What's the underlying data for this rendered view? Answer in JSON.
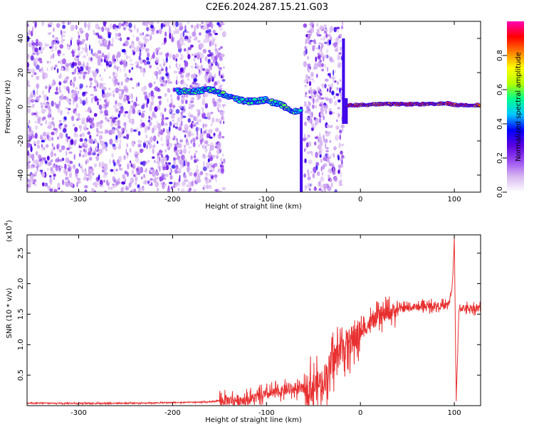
{
  "title": "C2E6.2024.287.15.21.G03",
  "chart_data": [
    {
      "type": "heatmap",
      "xlabel": "Height of straight line (km)",
      "ylabel": "Frequency (Hz)",
      "xlim": [
        -355,
        128
      ],
      "ylim": [
        -50,
        50
      ],
      "x_ticks": [
        -300,
        -200,
        -100,
        0,
        100
      ],
      "y_ticks": [
        -40,
        -20,
        0,
        20,
        40
      ],
      "colorbar": {
        "label": "Normalized spectral amplitude",
        "range": [
          0.0,
          1.0
        ],
        "ticks": [
          0.0,
          0.2,
          0.4,
          0.6,
          0.8
        ],
        "tick_labels": [
          "0.0",
          "0.2",
          "0.4",
          "0.6",
          "0.8"
        ],
        "colormap": [
          "#ffffff",
          "#d8b8f0",
          "#9a4df0",
          "#5a00e0",
          "#0000ff",
          "#00c8ff",
          "#00ff90",
          "#b4ff00",
          "#ffff00",
          "#ff8000",
          "#ff0000",
          "#ff00b4"
        ]
      },
      "noise_regions": [
        {
          "x_range": [
            -355,
            -145
          ],
          "density": "high"
        },
        {
          "x_range": [
            -60,
            -18
          ],
          "density": "high"
        }
      ],
      "signal_trace": {
        "x": [
          -195,
          -180,
          -160,
          -145,
          -130,
          -115,
          -100,
          -90,
          -80,
          -70,
          -63
        ],
        "y": [
          9,
          9,
          10,
          7,
          4,
          3,
          4,
          2,
          0,
          -3,
          -3
        ]
      },
      "tone_trace": {
        "x": [
          -13,
          0,
          20,
          40,
          60,
          80,
          93,
          100,
          128
        ],
        "y": [
          1,
          1,
          1.5,
          1.5,
          1.5,
          1.5,
          2,
          1,
          1
        ]
      },
      "vertical_streaks": [
        {
          "x": -63,
          "y_range": [
            -50,
            0
          ]
        },
        {
          "x": -18,
          "y_range": [
            -10,
            40
          ]
        },
        {
          "x": -15,
          "y_range": [
            -10,
            5
          ]
        }
      ]
    },
    {
      "type": "line",
      "xlabel": "Height of straight line (km)",
      "ylabel": "SNR (10 * v/v)",
      "multiplier_label": "(x10",
      "multiplier_exp": "4",
      "multiplier_close": ")",
      "xlim": [
        -355,
        128
      ],
      "ylim": [
        0,
        2.8
      ],
      "x_ticks": [
        -300,
        -200,
        -100,
        0,
        100
      ],
      "y_ticks": [
        0.5,
        1.0,
        1.5,
        2.0,
        2.5
      ],
      "y_tick_labels": [
        "0.5",
        "1.0",
        "1.5",
        "2.0",
        "2.5"
      ],
      "line_color": "#e83030",
      "trend": {
        "x": [
          -355,
          -300,
          -250,
          -200,
          -160,
          -150,
          -120,
          -100,
          -80,
          -60,
          -50,
          -40,
          -30,
          -20,
          -10,
          0,
          10,
          20,
          30,
          40,
          60,
          80,
          90,
          95,
          98,
          100,
          102,
          105,
          110,
          128
        ],
        "y": [
          0.04,
          0.04,
          0.04,
          0.05,
          0.06,
          0.08,
          0.1,
          0.18,
          0.25,
          0.28,
          0.3,
          0.4,
          0.7,
          0.95,
          1.05,
          1.2,
          1.35,
          1.45,
          1.52,
          1.58,
          1.62,
          1.64,
          1.63,
          1.7,
          2.0,
          2.75,
          0.05,
          1.6,
          1.6,
          1.6
        ]
      }
    }
  ]
}
